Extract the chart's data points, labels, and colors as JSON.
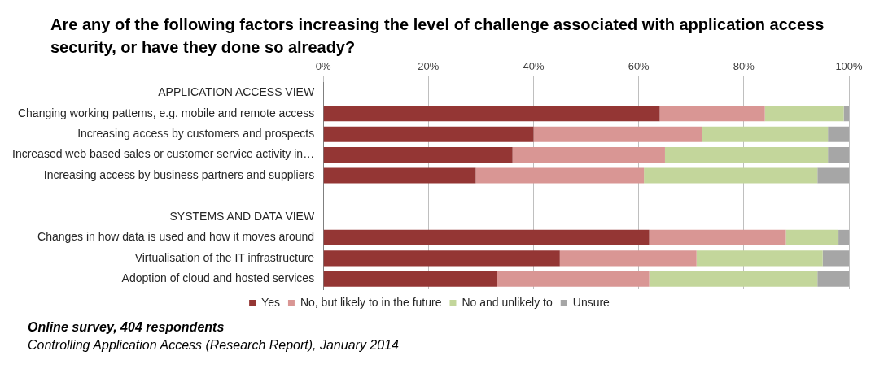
{
  "chart_data": {
    "type": "bar",
    "orientation": "horizontal",
    "stacked": true,
    "title": "Are any of the following factors increasing the level of challenge associated with application access security, or have they done so already?",
    "categories": [
      "APPLICATION ACCESS VIEW",
      "Changing working pattems, e.g. mobile and remote access",
      "Increasing access by customers and prospects",
      "Increased web based sales or customer service activity in…",
      "Increasing access by business partners and suppliers",
      null,
      "SYSTEMS AND DATA VIEW",
      "Changes in how data is used and how it moves around",
      "Virtualisation of the IT infrastructure",
      "Adoption of cloud and hosted services"
    ],
    "series": [
      {
        "name": "Yes",
        "color": "#943634",
        "values": [
          null,
          64,
          40,
          36,
          29,
          null,
          null,
          62,
          45,
          33
        ]
      },
      {
        "name": "No, but likely to in the future",
        "color": "#d99694",
        "values": [
          null,
          20,
          32,
          29,
          32,
          null,
          null,
          26,
          26,
          29
        ]
      },
      {
        "name": "No and unlikely to",
        "color": "#c3d69b",
        "values": [
          null,
          15,
          24,
          31,
          33,
          null,
          null,
          10,
          24,
          32
        ]
      },
      {
        "name": "Unsure",
        "color": "#a6a6a6",
        "values": [
          null,
          1,
          4,
          4,
          6,
          null,
          null,
          2,
          5,
          6
        ]
      }
    ],
    "xlim": [
      0,
      100
    ],
    "xticks": [
      {
        "value": 0,
        "label": "0%"
      },
      {
        "value": 20,
        "label": "20%"
      },
      {
        "value": 40,
        "label": "40%"
      },
      {
        "value": 60,
        "label": "60%"
      },
      {
        "value": 80,
        "label": "80%"
      },
      {
        "value": 100,
        "label": "100%"
      }
    ],
    "grid": "x",
    "legend": "bottom",
    "annotations": [
      "Online survey, 404 respondents",
      "Controlling Application Access (Research Report), January 2014"
    ]
  }
}
